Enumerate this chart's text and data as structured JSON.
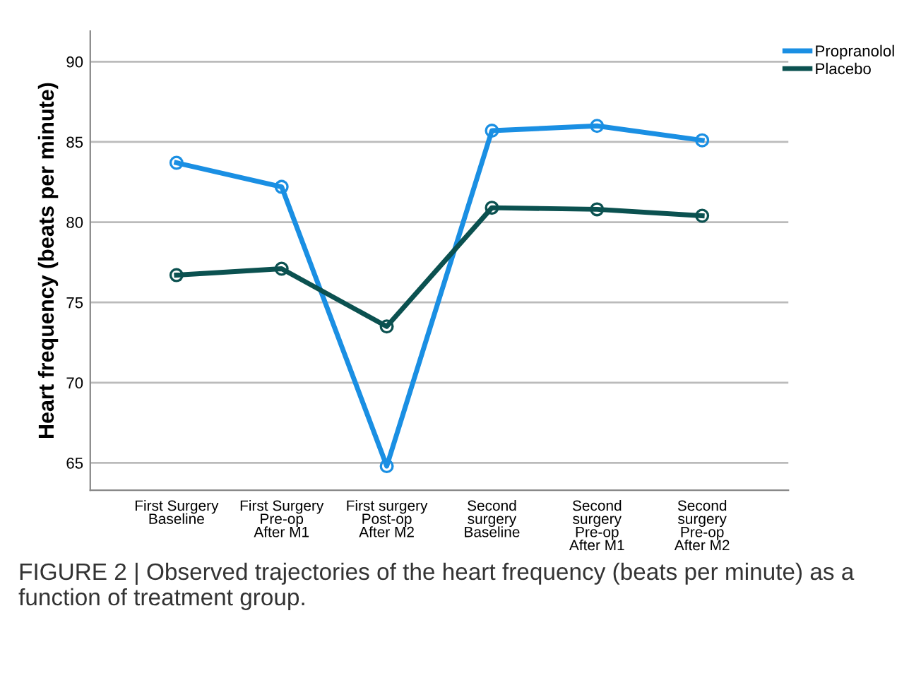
{
  "chart_data": {
    "type": "line",
    "ylabel": "Heart frequency (beats per minute)",
    "categories": [
      "First Surgery\nBaseline",
      "First Surgery\nPre-op\nAfter M1",
      "First surgery\nPost-op\nAfter M2",
      "Second\nsurgery\nBaseline",
      "Second\nsurgery\nPre-op\nAfter M1",
      "Second\nsurgery\nPre-op\nAfter M2"
    ],
    "series": [
      {
        "name": "Propranolol",
        "color": "#1a8fe3",
        "values": [
          83.7,
          82.2,
          64.8,
          85.7,
          86.0,
          85.1
        ]
      },
      {
        "name": "Placebo",
        "color": "#0b5150",
        "values": [
          76.7,
          77.1,
          73.5,
          80.9,
          80.8,
          80.4
        ]
      }
    ],
    "ylim": [
      63.3,
      91.9
    ],
    "yticks": [
      65,
      70,
      75,
      80,
      85,
      90
    ],
    "grid": "y",
    "legend": "top right",
    "marker": "circle",
    "line_style": "solid",
    "annotations": [
      "FIGURE 2 | Observed trajectories of the heart frequency (beats per minute) as a function of treatment group."
    ]
  }
}
